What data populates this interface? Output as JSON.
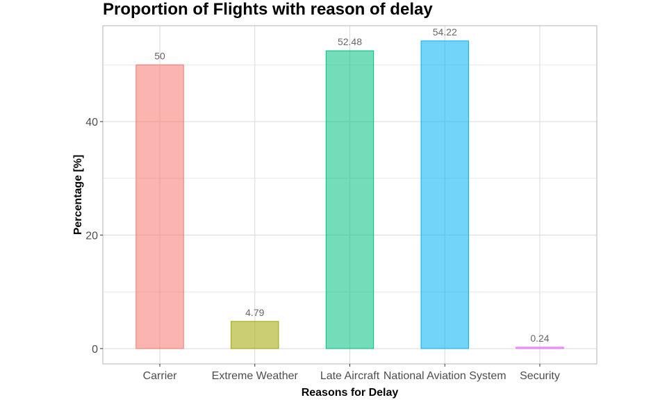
{
  "chart_data": {
    "type": "bar",
    "title": "Proportion of Flights with reason of delay",
    "xlabel": "Reasons for Delay",
    "ylabel": "Percentage [%]",
    "categories": [
      "Carrier",
      "Extreme Weather",
      "Late Aircraft",
      "National Aviation System",
      "Security"
    ],
    "values": [
      50,
      4.79,
      52.48,
      54.22,
      0.24
    ],
    "data_labels": [
      "50",
      "4.79",
      "52.48",
      "54.22",
      "0.24"
    ],
    "ylim": [
      -2.7,
      56.9
    ],
    "yticks": [
      0,
      20,
      40
    ],
    "ytick_labels": [
      "0",
      "20",
      "40"
    ],
    "grid": true,
    "legend": "none",
    "colors": {
      "fills": [
        "#F8766D",
        "#A3A500",
        "#00BF7D",
        "#00B0F6",
        "#E76BF3"
      ],
      "fill_opacity": 0.55,
      "grid": "#d9d9d9",
      "panel_border": "#b3b3b3"
    }
  }
}
